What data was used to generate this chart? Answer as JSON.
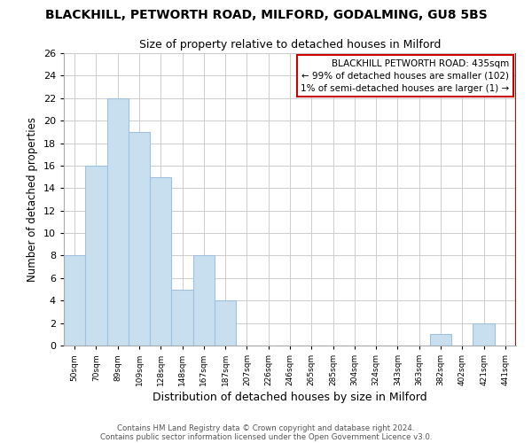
{
  "title": "BLACKHILL, PETWORTH ROAD, MILFORD, GODALMING, GU8 5BS",
  "subtitle": "Size of property relative to detached houses in Milford",
  "xlabel": "Distribution of detached houses by size in Milford",
  "ylabel": "Number of detached properties",
  "bar_color": "#c8dff0",
  "bar_edge_color": "#a0c0e0",
  "bin_labels": [
    "50sqm",
    "70sqm",
    "89sqm",
    "109sqm",
    "128sqm",
    "148sqm",
    "167sqm",
    "187sqm",
    "207sqm",
    "226sqm",
    "246sqm",
    "265sqm",
    "285sqm",
    "304sqm",
    "324sqm",
    "343sqm",
    "363sqm",
    "382sqm",
    "402sqm",
    "421sqm",
    "441sqm"
  ],
  "bar_heights": [
    8,
    16,
    22,
    19,
    15,
    5,
    8,
    4,
    0,
    0,
    0,
    0,
    0,
    0,
    0,
    0,
    0,
    1,
    0,
    2,
    0
  ],
  "ylim": [
    0,
    26
  ],
  "yticks": [
    0,
    2,
    4,
    6,
    8,
    10,
    12,
    14,
    16,
    18,
    20,
    22,
    24,
    26
  ],
  "annotation_box_text": "BLACKHILL PETWORTH ROAD: 435sqm\n← 99% of detached houses are smaller (102)\n1% of semi-detached houses are larger (1) →",
  "vline_color": "#cc0000",
  "footer1": "Contains HM Land Registry data © Crown copyright and database right 2024.",
  "footer2": "Contains public sector information licensed under the Open Government Licence v3.0.",
  "grid_color": "#cccccc",
  "background_color": "#ffffff"
}
